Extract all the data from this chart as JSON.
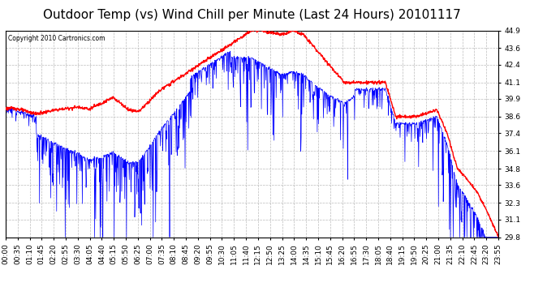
{
  "title": "Outdoor Temp (vs) Wind Chill per Minute (Last 24 Hours) 20101117",
  "copyright_text": "Copyright 2010 Cartronics.com",
  "y_ticks": [
    29.8,
    31.1,
    32.3,
    33.6,
    34.8,
    36.1,
    37.4,
    38.6,
    39.9,
    41.1,
    42.4,
    43.6,
    44.9
  ],
  "y_min": 29.8,
  "y_max": 44.9,
  "x_tick_labels": [
    "00:00",
    "00:35",
    "01:10",
    "01:45",
    "02:20",
    "02:55",
    "03:30",
    "04:05",
    "04:40",
    "05:15",
    "05:50",
    "06:25",
    "07:00",
    "07:35",
    "08:10",
    "08:45",
    "09:20",
    "09:55",
    "10:30",
    "11:05",
    "11:40",
    "12:15",
    "12:50",
    "13:25",
    "14:00",
    "14:35",
    "15:10",
    "15:45",
    "16:20",
    "16:55",
    "17:30",
    "18:05",
    "18:40",
    "19:15",
    "19:50",
    "20:25",
    "21:00",
    "21:35",
    "22:10",
    "22:45",
    "23:20",
    "23:55"
  ],
  "outdoor_color": "#FF0000",
  "windchill_color": "#0000FF",
  "background_color": "#FFFFFF",
  "grid_color": "#BBBBBB",
  "title_fontsize": 11,
  "label_fontsize": 6.5
}
